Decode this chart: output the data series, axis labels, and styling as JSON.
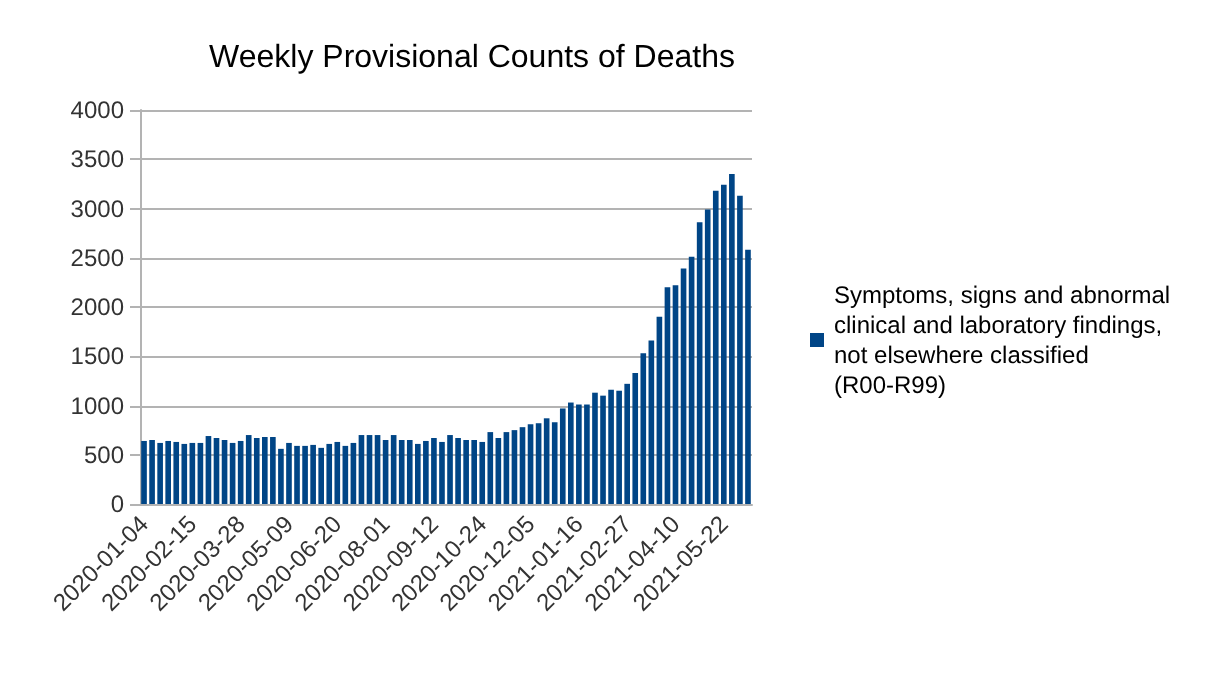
{
  "chart_data": {
    "type": "bar",
    "title": "Weekly Provisional Counts of Deaths",
    "categories": [
      "2020-01-04",
      null,
      null,
      null,
      null,
      null,
      "2020-02-15",
      null,
      null,
      null,
      null,
      null,
      "2020-03-28",
      null,
      null,
      null,
      null,
      null,
      "2020-05-09",
      null,
      null,
      null,
      null,
      null,
      "2020-06-20",
      null,
      null,
      null,
      null,
      null,
      "2020-08-01",
      null,
      null,
      null,
      null,
      null,
      "2020-09-12",
      null,
      null,
      null,
      null,
      null,
      "2020-10-24",
      null,
      null,
      null,
      null,
      null,
      "2020-12-05",
      null,
      null,
      null,
      null,
      null,
      "2021-01-16",
      null,
      null,
      null,
      null,
      null,
      "2021-02-27",
      null,
      null,
      null,
      null,
      null,
      "2021-04-10",
      null,
      null,
      null,
      null,
      null,
      "2021-05-22",
      null,
      null,
      null
    ],
    "series": [
      {
        "name": "Symptoms, signs and abnormal clinical and laboratory findings, not elsewhere classified (R00-R99)",
        "color": "#004586",
        "values": [
          640,
          650,
          620,
          640,
          630,
          610,
          620,
          620,
          690,
          670,
          650,
          620,
          640,
          700,
          670,
          680,
          680,
          560,
          620,
          590,
          590,
          600,
          570,
          610,
          630,
          590,
          620,
          700,
          700,
          700,
          650,
          700,
          650,
          650,
          610,
          640,
          670,
          630,
          700,
          670,
          650,
          650,
          630,
          730,
          670,
          730,
          750,
          780,
          810,
          820,
          870,
          830,
          970,
          1030,
          1010,
          1010,
          1130,
          1100,
          1160,
          1150,
          1220,
          1330,
          1530,
          1660,
          1900,
          2200,
          2220,
          2390,
          2510,
          2860,
          2990,
          3180,
          3240,
          3350,
          3130,
          2580
        ]
      }
    ],
    "ylim": [
      0,
      4000
    ],
    "yticks": [
      0,
      500,
      1000,
      1500,
      2000,
      2500,
      3000,
      3500,
      4000
    ],
    "grid": "y",
    "legend": "right"
  }
}
